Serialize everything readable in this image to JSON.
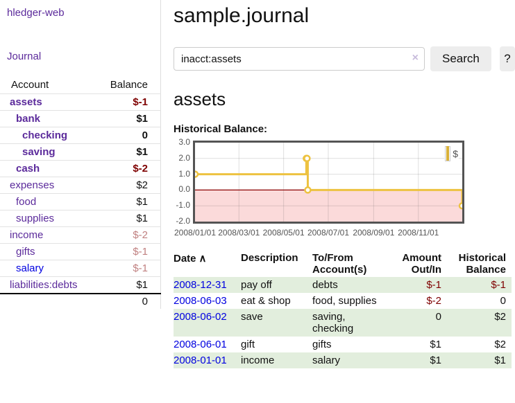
{
  "app": {
    "brand": "hledger-web",
    "nav": {
      "journal": "Journal"
    }
  },
  "sidebar": {
    "header": {
      "account": "Account",
      "balance": "Balance"
    },
    "accounts": [
      {
        "name": "assets",
        "depth": 0,
        "balance": "$-1",
        "bold": true,
        "bal_class": "neg-dark",
        "link": "purple"
      },
      {
        "name": "bank",
        "depth": 1,
        "balance": "$1",
        "bold": true,
        "bal_class": "",
        "link": "purple"
      },
      {
        "name": "checking",
        "depth": 2,
        "balance": "0",
        "bold": true,
        "bal_class": "",
        "link": "purple"
      },
      {
        "name": "saving",
        "depth": 2,
        "balance": "$1",
        "bold": true,
        "bal_class": "",
        "link": "purple"
      },
      {
        "name": "cash",
        "depth": 1,
        "balance": "$-2",
        "bold": true,
        "bal_class": "neg-dark",
        "link": "purple"
      },
      {
        "name": "expenses",
        "depth": 0,
        "balance": "$2",
        "bold": false,
        "bal_class": "",
        "link": "purple"
      },
      {
        "name": "food",
        "depth": 1,
        "balance": "$1",
        "bold": false,
        "bal_class": "",
        "link": "purple"
      },
      {
        "name": "supplies",
        "depth": 1,
        "balance": "$1",
        "bold": false,
        "bal_class": "",
        "link": "purple"
      },
      {
        "name": "income",
        "depth": 0,
        "balance": "$-2",
        "bold": false,
        "bal_class": "neg-light",
        "link": "purple"
      },
      {
        "name": "gifts",
        "depth": 1,
        "balance": "$-1",
        "bold": false,
        "bal_class": "neg-light",
        "link": "purple"
      },
      {
        "name": "salary",
        "depth": 1,
        "balance": "$-1",
        "bold": false,
        "bal_class": "neg-light",
        "link": "blue"
      },
      {
        "name": "liabilities:debts",
        "depth": 0,
        "balance": "$1",
        "bold": false,
        "bal_class": "",
        "link": "purple"
      }
    ],
    "total": "0"
  },
  "header": {
    "title": "sample.journal"
  },
  "search": {
    "value": "inacct:assets",
    "clear_icon": "×",
    "button_label": "Search",
    "help_label": "?"
  },
  "account_page": {
    "title": "assets",
    "chart_heading": "Historical Balance:"
  },
  "chart_data": {
    "type": "line",
    "step": true,
    "title": "Historical Balance:",
    "series": [
      {
        "name": "$",
        "color": "#edc240",
        "points": [
          {
            "date": "2008-01-01",
            "day": 0,
            "value": 1
          },
          {
            "date": "2008-06-01",
            "day": 152,
            "value": 2
          },
          {
            "date": "2008-06-02",
            "day": 153,
            "value": 2
          },
          {
            "date": "2008-06-03",
            "day": 154,
            "value": 0
          },
          {
            "date": "2008-12-31",
            "day": 365,
            "value": -1
          }
        ]
      }
    ],
    "ylim": [
      -2,
      3
    ],
    "y_ticks": [
      {
        "label": "3.0",
        "value": 3
      },
      {
        "label": "2.0",
        "value": 2
      },
      {
        "label": "1.0",
        "value": 1
      },
      {
        "label": "0.0",
        "value": 0
      },
      {
        "label": "-1.0",
        "value": -1
      },
      {
        "label": "-2.0",
        "value": -2
      }
    ],
    "x_ticks": [
      {
        "label": "2008/01/01",
        "day": 0
      },
      {
        "label": "2008/03/01",
        "day": 60
      },
      {
        "label": "2008/05/01",
        "day": 121
      },
      {
        "label": "2008/07/01",
        "day": 182
      },
      {
        "label": "2008/09/01",
        "day": 244
      },
      {
        "label": "2008/11/01",
        "day": 305
      }
    ],
    "xlim_days": [
      0,
      365
    ],
    "grid": true,
    "negative_region_color": "#fbdada",
    "zero_line_color": "#8b0000",
    "frame_color": "#545454",
    "legend": {
      "label": "$",
      "position": "top-right"
    }
  },
  "register": {
    "columns": [
      "Date",
      "Description",
      "To/From Account(s)",
      "Amount Out/In",
      "Historical Balance"
    ],
    "sort_indicator": "∧",
    "rows": [
      {
        "date": "2008-12-31",
        "description": "pay off",
        "accounts": "debts",
        "amount": "$-1",
        "amount_neg": true,
        "balance": "$-1",
        "balance_neg": true,
        "stripe": true
      },
      {
        "date": "2008-06-03",
        "description": "eat & shop",
        "accounts": "food, supplies",
        "amount": "$-2",
        "amount_neg": true,
        "balance": "0",
        "balance_neg": false,
        "stripe": false
      },
      {
        "date": "2008-06-02",
        "description": "save",
        "accounts": "saving, checking",
        "amount": "0",
        "amount_neg": false,
        "balance": "$2",
        "balance_neg": false,
        "stripe": true
      },
      {
        "date": "2008-06-01",
        "description": "gift",
        "accounts": "gifts",
        "amount": "$1",
        "amount_neg": false,
        "balance": "$2",
        "balance_neg": false,
        "stripe": false
      },
      {
        "date": "2008-01-01",
        "description": "income",
        "accounts": "salary",
        "amount": "$1",
        "amount_neg": false,
        "balance": "$1",
        "balance_neg": false,
        "stripe": true
      }
    ]
  }
}
